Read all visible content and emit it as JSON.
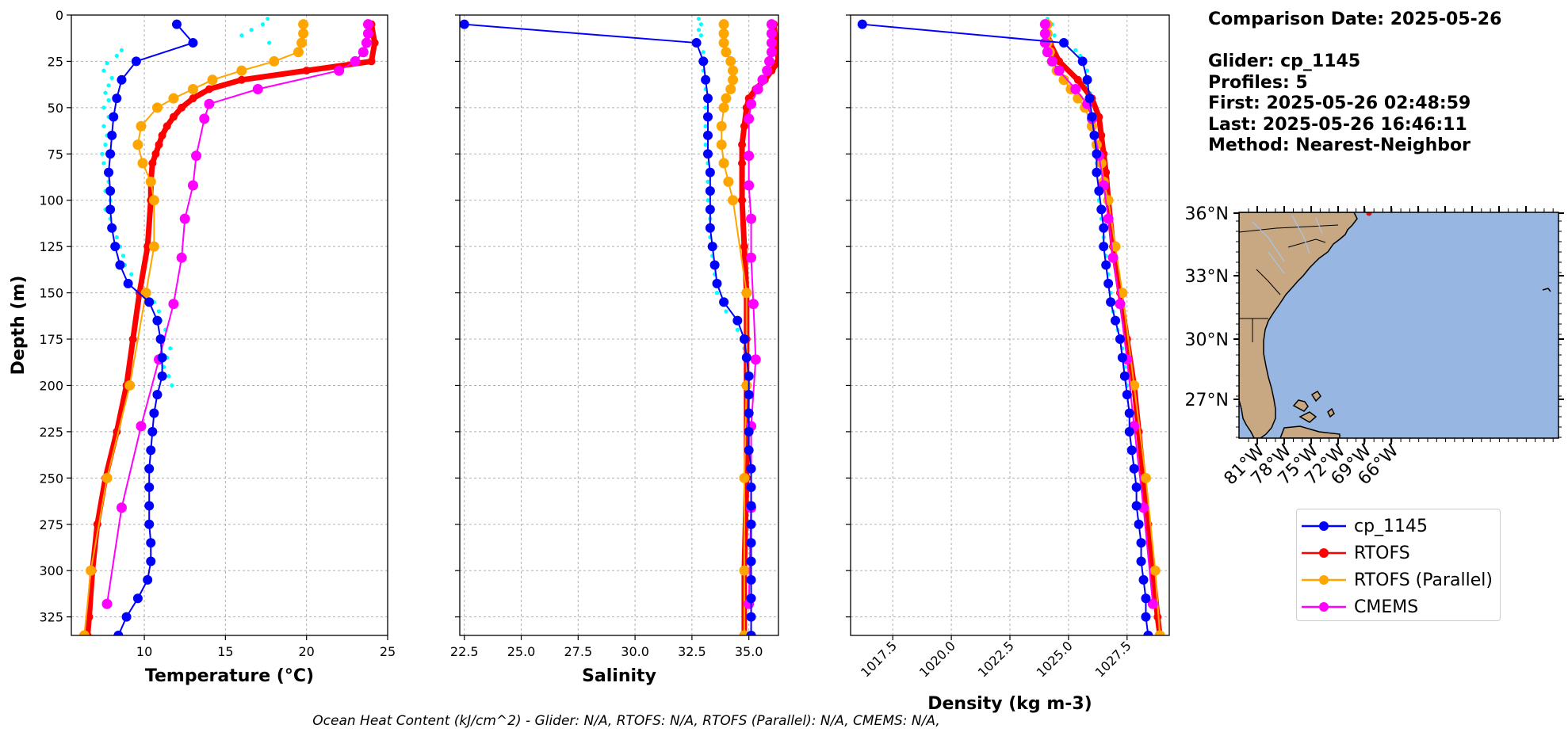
{
  "info": {
    "comparison_date": "Comparison Date: 2025-05-26",
    "glider": "Glider: cp_1145",
    "profiles": "Profiles: 5",
    "first": "First: 2025-05-26 02:48:59",
    "last": "Last: 2025-05-26 16:46:11",
    "method": "Method: Nearest-Neighbor"
  },
  "footer": "Ocean Heat Content (kJ/cm^2) - Glider: N/A,  RTOFS: N/A,  RTOFS (Parallel): N/A,  CMEMS: N/A,",
  "colors": {
    "glider": "#0000ff",
    "glider_raw": "#00ffff",
    "rtofs": "#ff0000",
    "rtofs_parallel": "#ffa500",
    "cmems": "#ff00ff"
  },
  "legend": [
    {
      "name": "cp_1145",
      "color": "#0000ff"
    },
    {
      "name": "RTOFS",
      "color": "#ff0000"
    },
    {
      "name": "RTOFS (Parallel)",
      "color": "#ffa500"
    },
    {
      "name": "CMEMS",
      "color": "#ff00ff"
    }
  ],
  "chart_data": [
    {
      "type": "line",
      "xlabel": "Temperature (°C)",
      "ylabel": "Depth (m)",
      "xlim": [
        5.5,
        25
      ],
      "ylim": [
        335,
        0
      ],
      "xticks": [
        10,
        15,
        20,
        25
      ],
      "yticks": [
        0,
        25,
        50,
        75,
        100,
        125,
        150,
        175,
        200,
        225,
        250,
        275,
        300,
        325
      ],
      "grid": true,
      "series": [
        {
          "name": "cp_1145",
          "depth": [
            5,
            15,
            25,
            35,
            45,
            55,
            65,
            75,
            85,
            95,
            105,
            115,
            125,
            135,
            145,
            155,
            165,
            175,
            185,
            195,
            205,
            215,
            225,
            235,
            245,
            255,
            265,
            275,
            285,
            295,
            305,
            315,
            325,
            335
          ],
          "values": [
            12.0,
            13.0,
            9.5,
            8.6,
            8.3,
            8.1,
            8.0,
            7.9,
            7.8,
            7.9,
            7.9,
            8.0,
            8.2,
            8.5,
            9.0,
            10.3,
            10.8,
            11.0,
            11.1,
            11.1,
            10.8,
            10.6,
            10.5,
            10.4,
            10.3,
            10.3,
            10.3,
            10.3,
            10.4,
            10.4,
            10.2,
            9.6,
            8.9,
            8.4
          ]
        },
        {
          "name": "RTOFS",
          "depth": [
            5,
            15,
            25,
            30,
            35,
            40,
            45,
            50,
            55,
            60,
            65,
            70,
            75,
            80,
            90,
            100,
            125,
            150,
            175,
            200,
            225,
            250,
            275,
            300,
            325,
            335
          ],
          "values": [
            24.0,
            24.2,
            24.0,
            20.0,
            16.0,
            14.0,
            13.0,
            12.3,
            11.8,
            11.4,
            11.1,
            10.9,
            10.7,
            10.5,
            10.4,
            10.4,
            10.2,
            9.7,
            9.3,
            8.9,
            8.3,
            7.6,
            7.1,
            6.8,
            6.6,
            6.5
          ]
        },
        {
          "name": "RTOFS (Parallel)",
          "depth": [
            5,
            10,
            15,
            20,
            25,
            30,
            35,
            40,
            45,
            50,
            60,
            70,
            80,
            90,
            100,
            125,
            150,
            200,
            250,
            300,
            335
          ],
          "values": [
            19.8,
            19.8,
            19.7,
            19.5,
            18.0,
            16.0,
            14.2,
            13.0,
            11.8,
            10.8,
            9.8,
            9.6,
            9.9,
            10.4,
            10.6,
            10.6,
            10.1,
            9.1,
            7.7,
            6.7,
            6.3
          ]
        },
        {
          "name": "CMEMS",
          "depth": [
            5,
            10,
            15,
            20,
            25,
            30,
            40,
            48,
            56,
            76,
            92,
            110,
            131,
            156,
            186,
            222,
            266,
            318
          ],
          "values": [
            23.8,
            23.8,
            23.7,
            23.5,
            23.0,
            22.0,
            17.0,
            14.0,
            13.7,
            13.2,
            13.0,
            12.5,
            12.3,
            11.8,
            10.9,
            9.8,
            8.6,
            7.7
          ]
        },
        {
          "name": "cp_1145 (raw)",
          "depth": [
            2,
            5,
            8,
            11,
            15,
            19,
            22,
            26,
            30,
            34,
            38,
            42,
            46,
            50,
            55,
            60,
            65,
            70,
            75,
            80,
            85,
            90,
            95,
            100,
            105,
            110,
            115,
            120,
            125,
            130,
            135,
            140,
            145,
            150,
            155,
            160,
            165,
            170,
            175,
            180,
            185,
            190,
            195,
            200
          ],
          "values": [
            17.6,
            17.3,
            16.6,
            16.0,
            17.7,
            8.6,
            8.3,
            7.7,
            7.5,
            8.0,
            7.8,
            7.6,
            7.8,
            7.5,
            7.8,
            7.5,
            7.7,
            7.6,
            7.4,
            7.5,
            7.7,
            7.8,
            7.6,
            7.9,
            7.6,
            7.9,
            8.0,
            8.3,
            8.5,
            8.7,
            8.8,
            9.2,
            9.8,
            10.0,
            10.6,
            10.9,
            11.0,
            11.3,
            11.0,
            11.6,
            11.4,
            11.2,
            11.5,
            11.7
          ]
        }
      ]
    },
    {
      "type": "line",
      "xlabel": "Salinity",
      "xlim": [
        22.3,
        36.3
      ],
      "ylim": [
        335,
        0
      ],
      "xticks": [
        22.5,
        25.0,
        27.5,
        30.0,
        32.5,
        35.0
      ],
      "grid": true,
      "series": [
        {
          "name": "cp_1145",
          "depth": [
            5,
            15,
            25,
            35,
            45,
            55,
            65,
            75,
            85,
            95,
            105,
            115,
            125,
            135,
            145,
            155,
            165,
            175,
            185,
            195,
            205,
            215,
            225,
            235,
            245,
            255,
            265,
            275,
            285,
            295,
            305,
            315,
            325,
            335
          ],
          "values": [
            22.5,
            32.7,
            33.0,
            33.1,
            33.2,
            33.2,
            33.2,
            33.2,
            33.3,
            33.3,
            33.3,
            33.3,
            33.4,
            33.5,
            33.6,
            33.9,
            34.5,
            34.8,
            34.9,
            35.0,
            35.0,
            35.0,
            35.0,
            35.0,
            35.1,
            35.1,
            35.1,
            35.1,
            35.1,
            35.1,
            35.1,
            35.1,
            35.1,
            35.1
          ]
        },
        {
          "name": "RTOFS",
          "depth": [
            5,
            15,
            25,
            30,
            35,
            40,
            45,
            50,
            60,
            70,
            80,
            100,
            125,
            150,
            175,
            200,
            250,
            300,
            335
          ],
          "values": [
            36.1,
            36.2,
            36.3,
            36.0,
            35.7,
            35.3,
            35.0,
            34.9,
            34.8,
            34.7,
            34.7,
            34.7,
            34.8,
            34.9,
            34.9,
            34.9,
            34.9,
            34.8,
            34.8
          ]
        },
        {
          "name": "RTOFS (Parallel)",
          "depth": [
            5,
            10,
            15,
            20,
            25,
            30,
            35,
            40,
            45,
            50,
            60,
            70,
            80,
            90,
            100,
            150,
            200,
            250,
            300,
            335
          ],
          "values": [
            33.9,
            33.9,
            33.9,
            34.0,
            34.2,
            34.3,
            34.3,
            34.2,
            34.0,
            33.9,
            33.8,
            33.8,
            33.9,
            34.1,
            34.3,
            34.9,
            34.9,
            34.8,
            34.8,
            34.8
          ]
        },
        {
          "name": "CMEMS",
          "depth": [
            5,
            10,
            15,
            20,
            25,
            30,
            35,
            40,
            48,
            56,
            76,
            92,
            110,
            131,
            156,
            186,
            222,
            266,
            318
          ],
          "values": [
            36.0,
            36.0,
            36.0,
            36.0,
            35.9,
            35.8,
            35.6,
            35.4,
            35.1,
            35.0,
            35.0,
            35.0,
            35.1,
            35.1,
            35.2,
            35.3,
            35.1,
            35.1,
            35.0
          ]
        },
        {
          "name": "cp_1145 (raw)",
          "depth": [
            2,
            5,
            8,
            11,
            15,
            20,
            30,
            40,
            50,
            60,
            70,
            80,
            90,
            100,
            110,
            120,
            130,
            140,
            150,
            160,
            170,
            180,
            190,
            200
          ],
          "values": [
            32.8,
            32.9,
            32.8,
            32.9,
            32.7,
            33.0,
            33.0,
            33.1,
            33.1,
            33.1,
            33.1,
            33.2,
            33.2,
            33.2,
            33.3,
            33.3,
            33.4,
            33.5,
            33.6,
            34.0,
            34.5,
            34.8,
            34.9,
            35.0
          ]
        }
      ]
    },
    {
      "type": "line",
      "xlabel": "Density (kg m-3)",
      "xlim": [
        1015.7,
        1029.3
      ],
      "ylim": [
        335,
        0
      ],
      "xticks": [
        1017.5,
        1020.0,
        1022.5,
        1025.0,
        1027.5
      ],
      "grid": true,
      "series": [
        {
          "name": "cp_1145",
          "depth": [
            5,
            15,
            25,
            35,
            45,
            55,
            65,
            75,
            85,
            95,
            105,
            115,
            125,
            135,
            145,
            155,
            165,
            175,
            185,
            195,
            205,
            215,
            225,
            235,
            245,
            255,
            265,
            275,
            285,
            295,
            305,
            315,
            325,
            335
          ],
          "values": [
            1016.2,
            1024.8,
            1025.6,
            1025.8,
            1025.9,
            1026.0,
            1026.1,
            1026.2,
            1026.2,
            1026.3,
            1026.4,
            1026.5,
            1026.5,
            1026.6,
            1026.7,
            1026.8,
            1027.0,
            1027.2,
            1027.3,
            1027.4,
            1027.5,
            1027.6,
            1027.6,
            1027.7,
            1027.8,
            1027.9,
            1027.9,
            1028.0,
            1028.1,
            1028.1,
            1028.2,
            1028.3,
            1028.3,
            1028.4
          ]
        },
        {
          "name": "RTOFS",
          "depth": [
            5,
            15,
            25,
            35,
            45,
            55,
            65,
            75,
            85,
            100,
            125,
            150,
            175,
            200,
            225,
            250,
            275,
            300,
            325,
            335
          ],
          "values": [
            1024.0,
            1024.2,
            1024.6,
            1025.4,
            1026.0,
            1026.3,
            1026.4,
            1026.5,
            1026.6,
            1026.7,
            1026.9,
            1027.2,
            1027.5,
            1027.8,
            1028.0,
            1028.2,
            1028.4,
            1028.6,
            1028.8,
            1028.9
          ]
        },
        {
          "name": "RTOFS (Parallel)",
          "depth": [
            5,
            10,
            15,
            20,
            25,
            30,
            35,
            40,
            45,
            50,
            60,
            70,
            80,
            90,
            100,
            125,
            150,
            200,
            250,
            300,
            335
          ],
          "values": [
            1024.1,
            1024.1,
            1024.1,
            1024.2,
            1024.3,
            1024.5,
            1024.8,
            1025.1,
            1025.4,
            1025.7,
            1026.0,
            1026.2,
            1026.4,
            1026.5,
            1026.7,
            1027.0,
            1027.3,
            1027.8,
            1028.3,
            1028.7,
            1028.9
          ]
        },
        {
          "name": "CMEMS",
          "depth": [
            5,
            10,
            15,
            20,
            25,
            30,
            40,
            48,
            56,
            76,
            92,
            110,
            131,
            156,
            186,
            222,
            266,
            318
          ],
          "values": [
            1024.0,
            1024.0,
            1024.0,
            1024.1,
            1024.3,
            1024.6,
            1025.3,
            1025.8,
            1026.0,
            1026.3,
            1026.5,
            1026.7,
            1026.9,
            1027.2,
            1027.5,
            1027.8,
            1028.2,
            1028.6
          ]
        },
        {
          "name": "cp_1145 (raw)",
          "depth": [
            2,
            5,
            8,
            11,
            15,
            19,
            22,
            26,
            30,
            34,
            38,
            42,
            46,
            50,
            60,
            70,
            80,
            90,
            100,
            110,
            120,
            130,
            140,
            150,
            160,
            170,
            180,
            190,
            200
          ],
          "values": [
            1024.1,
            1024.3,
            1024.0,
            1024.4,
            1024.9,
            1025.3,
            1025.5,
            1025.6,
            1025.8,
            1025.9,
            1025.8,
            1025.9,
            1025.8,
            1025.9,
            1026.0,
            1026.1,
            1026.2,
            1026.3,
            1026.3,
            1026.4,
            1026.5,
            1026.6,
            1026.7,
            1026.8,
            1026.9,
            1027.1,
            1027.3,
            1027.4,
            1027.5
          ]
        }
      ]
    }
  ],
  "map": {
    "lat_labels": [
      "36°N",
      "33°N",
      "30°N",
      "27°N"
    ],
    "lon_labels": [
      "81°W",
      "78°W",
      "75°W",
      "72°W",
      "69°W",
      "66°W"
    ],
    "ocean_color": "#97b6e1",
    "land_color": "#c8a882"
  }
}
